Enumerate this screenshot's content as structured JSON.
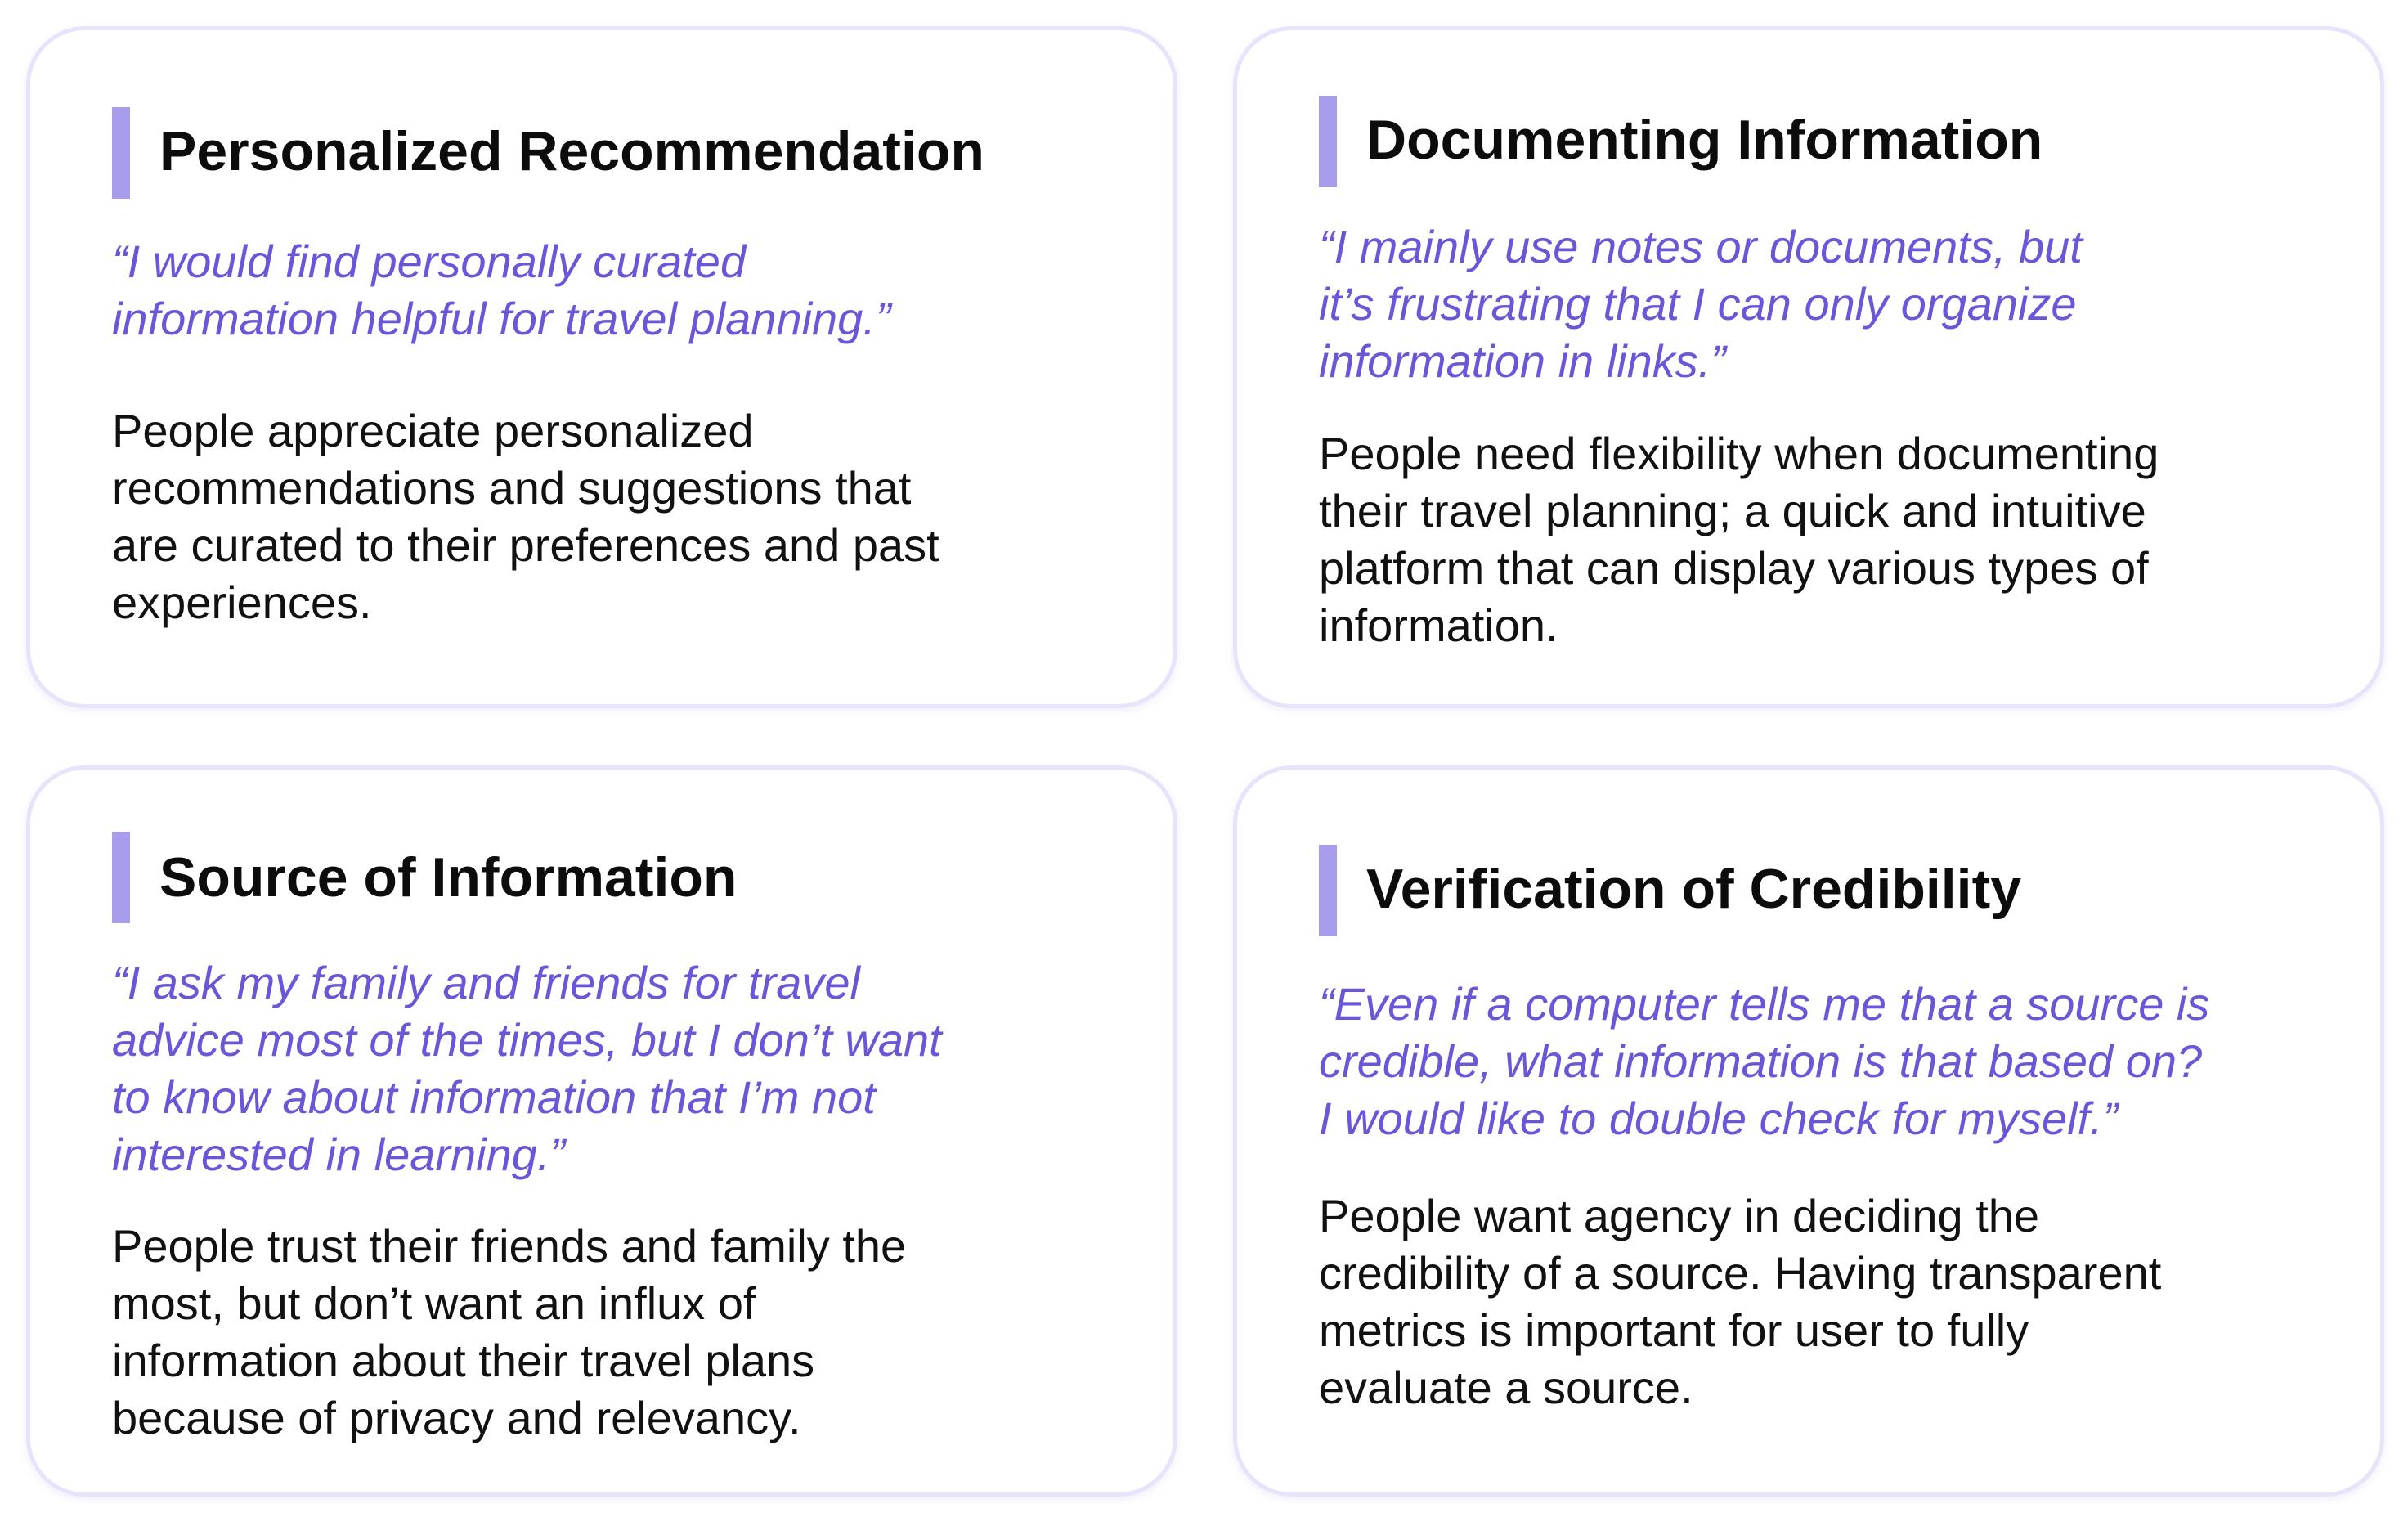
{
  "accent_bar_color": "#a89cec",
  "quote_color": "#6a56d8",
  "card_border_color": "#e6e4fb",
  "cards": [
    {
      "title": "Personalized Recommendation",
      "quote": "“I would find personally curated\ninformation helpful for travel planning.”",
      "description": "People appreciate personalized\nrecommendations and suggestions that\nare curated to their preferences and past\nexperiences."
    },
    {
      "title": "Documenting Information",
      "quote": "“I mainly use notes or documents, but\nit’s frustrating that I can only organize\ninformation in links.”",
      "description": "People need flexibility when documenting\ntheir travel planning; a quick and intuitive\nplatform that can display various types of\ninformation."
    },
    {
      "title": "Source of Information",
      "quote": "“I ask my family and friends for travel\nadvice most of the times, but I don’t want\nto know about information that I’m not\ninterested in learning.”",
      "description": "People trust their friends and family the\nmost, but don’t want an influx of\ninformation about their travel plans\nbecause of privacy and relevancy."
    },
    {
      "title": "Verification of Credibility",
      "quote": "“Even if a computer tells me that a source is\ncredible, what information is that based on?\nI would like to double check for myself.”",
      "description": "People want agency in deciding the\ncredibility of a source. Having transparent\nmetrics is important for user to fully\nevaluate a source."
    }
  ]
}
